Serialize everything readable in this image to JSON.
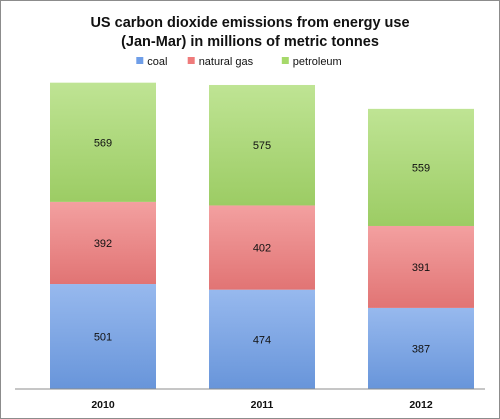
{
  "chart_data": {
    "type": "bar",
    "stacked": true,
    "title_lines": [
      "US carbon dioxide emissions from energy use",
      "(Jan-Mar) in millions of metric tonnes"
    ],
    "categories": [
      "2010",
      "2011",
      "2012"
    ],
    "series": [
      {
        "name": "coal",
        "values": [
          501,
          474,
          387
        ],
        "color": "#6f9ee8"
      },
      {
        "name": "natural gas",
        "values": [
          392,
          402,
          391
        ],
        "color": "#ef7b7b"
      },
      {
        "name": "petroleum",
        "values": [
          569,
          575,
          559
        ],
        "color": "#a6d96a"
      }
    ],
    "legend_position": "top",
    "grid": false,
    "show_y_axis": false,
    "ylim": [
      0,
      1470
    ]
  }
}
